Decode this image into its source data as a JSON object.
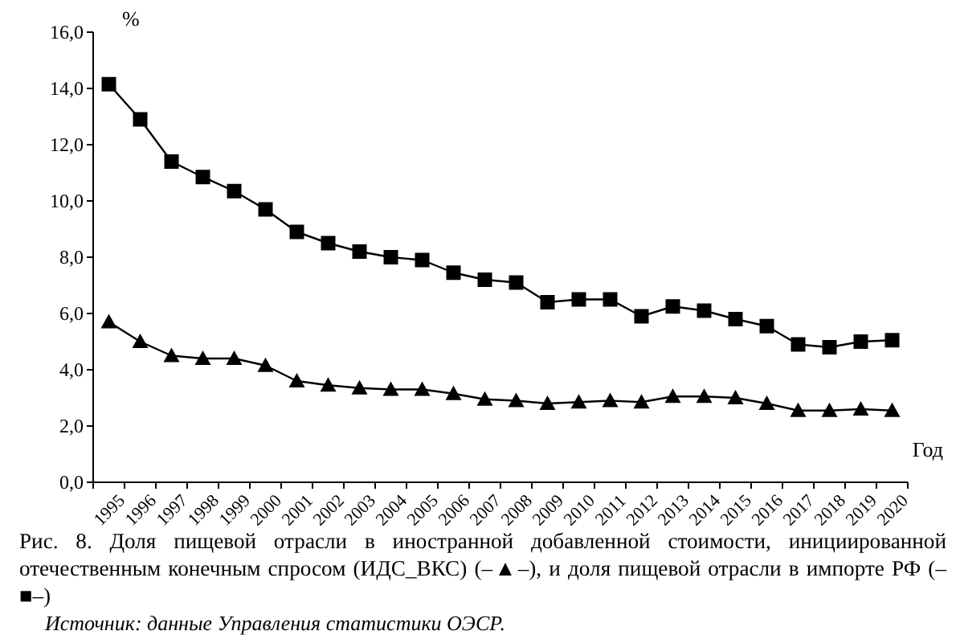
{
  "chart_data": {
    "type": "line",
    "title": "Рис. 8. Доля пищевой отрасли в иностранной добавленной стоимости, инициированной отечественным конечным спросом (ИДС_ВКС) (–▲–), и доля пищевой отрасли в импорте РФ (–■–)",
    "annotations": [
      "Источник: данные Управления статистики ОЭСР."
    ],
    "xlabel": "Год",
    "ylabel": "%",
    "categories": [
      "1995",
      "1996",
      "1997",
      "1998",
      "1999",
      "2000",
      "2001",
      "2002",
      "2003",
      "2004",
      "2005",
      "2006",
      "2007",
      "2008",
      "2009",
      "2010",
      "2011",
      "2012",
      "2013",
      "2014",
      "2015",
      "2016",
      "2017",
      "2018",
      "2019",
      "2020"
    ],
    "series": [
      {
        "color": "#000000",
        "marker": "square",
        "values": [
          14.15,
          12.9,
          11.4,
          10.85,
          10.35,
          9.7,
          8.9,
          8.5,
          8.2,
          8.0,
          7.9,
          7.45,
          7.2,
          7.1,
          6.4,
          6.5,
          6.5,
          5.9,
          6.25,
          6.1,
          5.8,
          5.55,
          4.9,
          4.8,
          5.0,
          5.05
        ]
      },
      {
        "color": "#000000",
        "marker": "triangle",
        "values": [
          5.7,
          5.0,
          4.5,
          4.4,
          4.4,
          4.15,
          3.6,
          3.45,
          3.35,
          3.3,
          3.3,
          3.15,
          2.95,
          2.9,
          2.8,
          2.85,
          2.9,
          2.85,
          3.05,
          3.05,
          3.0,
          2.8,
          2.55,
          2.55,
          2.6,
          2.55
        ]
      }
    ],
    "ylim": [
      0,
      16
    ],
    "yticks": [
      {
        "value": 0,
        "label": "0,0"
      },
      {
        "value": 2,
        "label": "2,0"
      },
      {
        "value": 4,
        "label": "4,0"
      },
      {
        "value": 6,
        "label": "6,0"
      },
      {
        "value": 8,
        "label": "8,0"
      },
      {
        "value": 10,
        "label": "10,0"
      },
      {
        "value": 12,
        "label": "12,0"
      },
      {
        "value": 14,
        "label": "14,0"
      },
      {
        "value": 16,
        "label": "16,0"
      }
    ],
    "grid": false,
    "line_style": "solid"
  }
}
